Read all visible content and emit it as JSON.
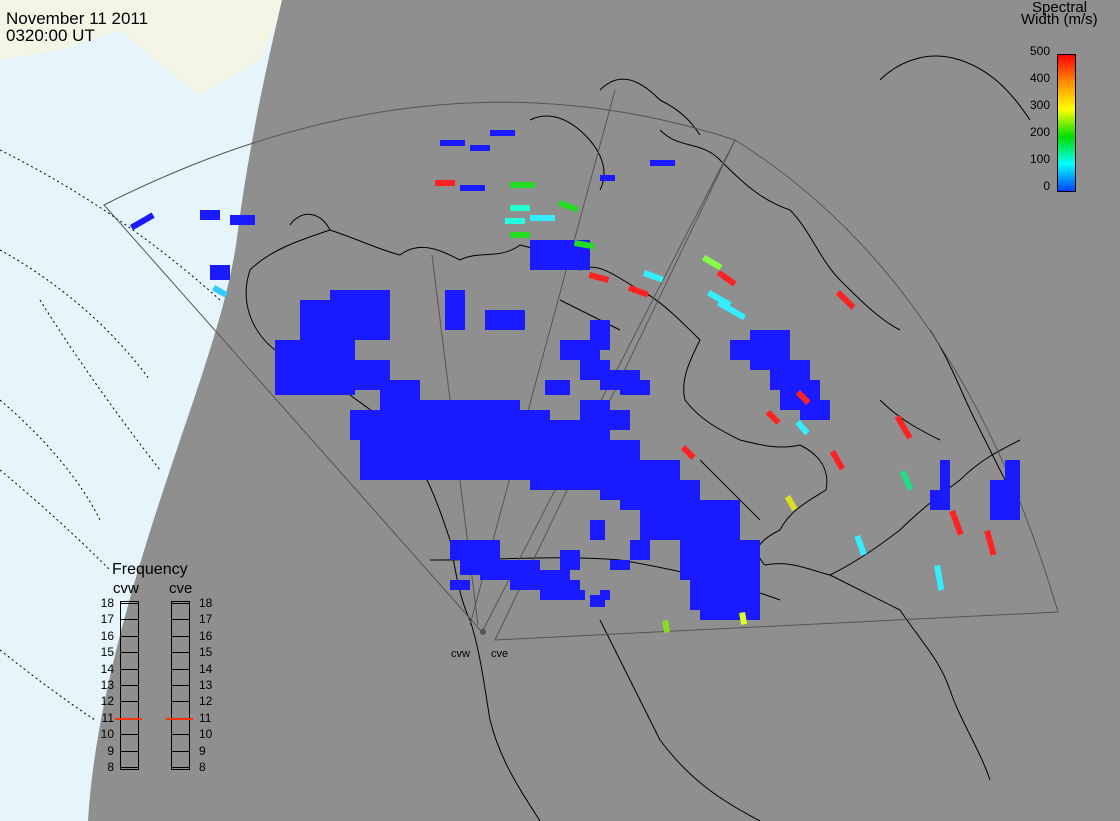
{
  "header": {
    "date": "November 11 2011",
    "time": "0320:00 UT"
  },
  "colorbar": {
    "title_line1": "Spectral",
    "title_line2": "Width (m/s)",
    "ticks": [
      "500",
      "400",
      "300",
      "200",
      "100",
      "0"
    ],
    "colors": [
      "#ff0000",
      "#ff8c00",
      "#ffff00",
      "#00dd00",
      "#00ffff",
      "#0044ff"
    ]
  },
  "frequency_panel": {
    "title": "Frequency",
    "radars": [
      "cvw",
      "cve"
    ],
    "ticks": [
      "18",
      "17",
      "16",
      "15",
      "14",
      "13",
      "12",
      "11",
      "10",
      "9",
      "8"
    ],
    "selected": {
      "cvw": 11,
      "cve": 11
    },
    "marker_color": "#ff3300"
  },
  "sites": {
    "cvw": "cvw",
    "cve": "cve"
  },
  "colors": {
    "night": "#8f8f8f",
    "ocean_day": "#e6f4fb",
    "land_day": "#f5f5e6",
    "echo_low": "#1a1aff"
  }
}
